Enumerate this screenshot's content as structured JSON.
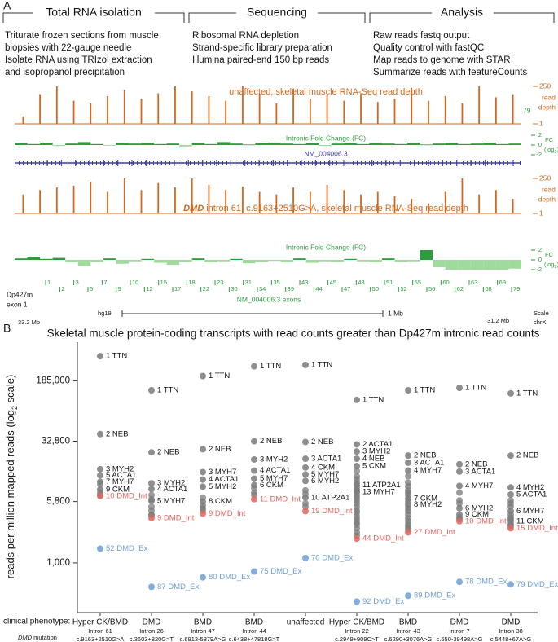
{
  "panel_a": {
    "label": "A",
    "sections": [
      {
        "title": "Total RNA isolation",
        "lines": [
          "Triturate frozen sections from muscle",
          "biopsies with 22-gauge needle",
          "Isolate RNA using TRIzol extraction",
          "and isopropanol precipitation"
        ]
      },
      {
        "title": "Sequencing",
        "lines": [
          "Ribosomal RNA depletion",
          "Strand-specific library preparation",
          "Illumina paired-end 150 bp reads"
        ]
      },
      {
        "title": "Analysis",
        "lines": [
          "Raw reads fastq output",
          "Quality control with fastQC",
          "Map reads to genome with STAR",
          "Summarize reads with featureCounts"
        ]
      }
    ],
    "depth_ylim": [
      1,
      250
    ],
    "depth_yticks": [
      250,
      1
    ],
    "depth_axis_label": [
      "read",
      "depth"
    ],
    "unaffected": {
      "title": "unaffected, skeletal muscle RNA-Seq read depth",
      "color": "#d2691e",
      "annotation": "79",
      "values": [
        3,
        80,
        250,
        30,
        20,
        60,
        150,
        40,
        90,
        250,
        120,
        60,
        30,
        250,
        80,
        20,
        180,
        40,
        70,
        30,
        90,
        25,
        40,
        200,
        30,
        60,
        20,
        250,
        50,
        79
      ]
    },
    "patient": {
      "title_italic": "DMD",
      "title": " intron 61, c.9163+2510G>A, skeletal muscle RNA-Seq read depth",
      "color": "#d2691e",
      "values": [
        20,
        40,
        60,
        80,
        150,
        30,
        250,
        40,
        120,
        60,
        250,
        90,
        40,
        70,
        30,
        20,
        60,
        30,
        90,
        40,
        20,
        30,
        15,
        10,
        5,
        30,
        250,
        20,
        40,
        10
      ]
    },
    "fc_title": "Intronic Fold Change (FC)",
    "fc_ylim": [
      -2,
      2
    ],
    "fc_yticks": [
      2,
      0,
      -2
    ],
    "fc_label": "FC",
    "fc_unit": [
      "(log",
      "2",
      ")"
    ],
    "fc_colors": {
      "positive": "#2e9b3e",
      "negative": "#9fdc9c"
    },
    "fc_unaffected": [
      0.4,
      0.2,
      0.5,
      -0.2,
      0.3,
      0.6,
      0.2,
      -0.1,
      0.4,
      0.3,
      0.5,
      0.2,
      0.3,
      -0.3,
      0.4,
      0.2,
      0.6,
      0.3,
      0.1,
      0.4,
      0.5,
      0.3,
      0.2,
      0.4,
      -0.2,
      0.3,
      0.5,
      0.2,
      0.4,
      0.3,
      0.2,
      0.5,
      0.1,
      0.3,
      0.4,
      0.2,
      0.3,
      0.5,
      0.2,
      0.3
    ],
    "fc_patient": [
      0.3,
      0.5,
      0.2,
      0.4,
      -0.5,
      -1.2,
      -0.4,
      0.3,
      -0.8,
      -0.3,
      0.2,
      -0.6,
      -1.0,
      -0.4,
      0.3,
      -0.5,
      -0.3,
      0.2,
      -0.7,
      -0.4,
      -0.2,
      -0.5,
      0.3,
      -0.6,
      -0.3,
      -0.4,
      0.2,
      -0.3,
      -0.5,
      0.3,
      -0.4,
      -0.3,
      2,
      -1.5,
      -2,
      -2,
      -2,
      -2,
      -2,
      -1.8
    ],
    "transcript": "NM_004006.3",
    "exons_title": "NM_004006.3 exons",
    "exons": [
      "1",
      "2",
      "3",
      "5",
      "7",
      "9",
      "10",
      "12",
      "15",
      "17",
      "18",
      "22",
      "23",
      "30",
      "31",
      "34",
      "35",
      "39",
      "43",
      "44",
      "45",
      "47",
      "48",
      "50",
      "51",
      "52",
      "55",
      "56",
      "60",
      "62",
      "63",
      "68",
      "69",
      "79"
    ],
    "isoform": [
      "Dp427m",
      "exon 1"
    ],
    "assembly": "hg19",
    "scale_bar": "1 Mb",
    "scale_label": "Scale",
    "chrom": "chrX",
    "coord_left": "33.2 Mb",
    "coord_right": "31.2 Mb"
  },
  "chart_data": {
    "type": "strip",
    "label": "B",
    "title": "Skeletal muscle protein-coding transcripts with read counts greater than Dp427m intronic read counts",
    "y_label": [
      "reads per million mapped reads (log",
      "2",
      " scale)"
    ],
    "log_scale": true,
    "ylim": [
      240,
      560000
    ],
    "yticks": [
      {
        "value": 1000,
        "label": "1,000"
      },
      {
        "value": 5800,
        "label": "5,800"
      },
      {
        "value": 32800,
        "label": "32,800"
      },
      {
        "value": 185000,
        "label": "185,000"
      }
    ],
    "colors": {
      "gene": "#7a7a7a",
      "intron": "#e0665e",
      "exon": "#6fa0d2"
    },
    "row_labels": {
      "phenotype": "clinical phenotype:",
      "mutation_italic": "DMD",
      "mutation": " mutation"
    },
    "categories": [
      "Hyper CK/BMD",
      "DMD",
      "BMD",
      "BMD",
      "unaffected",
      "Hyper CK/BMD",
      "BMD",
      "DMD",
      "DMD"
    ],
    "introns": [
      "Intron 61",
      "Intron 26",
      "Intron 47",
      "Intron 44",
      null,
      "Intron 22",
      "Intron 43",
      "Intron 7",
      "Intron 38"
    ],
    "mutations": [
      "c.9163+2510G>A",
      "c.3603+820G>T",
      "c.6913-5879A>G",
      "c.6438+47818G>T",
      null,
      "c.2949+909C>T",
      "c.6290+3076A>G",
      "c.650-39498A>G",
      "c.5448+67A>G"
    ],
    "columns": [
      {
        "points": [
          {
            "label": "1 TTN",
            "value": 375000,
            "kind": "gene"
          },
          {
            "label": "2 NEB",
            "value": 40200,
            "kind": "gene"
          },
          {
            "label": "3 MYH2",
            "value": 14700,
            "kind": "gene"
          },
          {
            "label": "5 ACTA1",
            "value": 12300,
            "kind": "gene"
          },
          {
            "label": "7 MYH7",
            "value": 10200,
            "kind": "gene"
          },
          {
            "label": "9 CKM",
            "value": 8200,
            "kind": "gene"
          },
          {
            "label": "10 DMD_Int",
            "value": 6800,
            "kind": "intron"
          },
          {
            "label": "52 DMD_Ex",
            "value": 1500,
            "kind": "exon"
          }
        ],
        "others": [
          9500,
          7500,
          7000
        ]
      },
      {
        "points": [
          {
            "label": "1 TTN",
            "value": 141000,
            "kind": "gene"
          },
          {
            "label": "2 NEB",
            "value": 23800,
            "kind": "gene"
          },
          {
            "label": "3 MYH2",
            "value": 9800,
            "kind": "gene"
          },
          {
            "label": "4 ACTA1",
            "value": 8300,
            "kind": "gene"
          },
          {
            "label": "5 MYH7",
            "value": 5900,
            "kind": "gene"
          },
          {
            "label": "9 DMD_Int",
            "value": 3600,
            "kind": "intron"
          },
          {
            "label": "87 DMD_Ex",
            "value": 504,
            "kind": "exon"
          }
        ],
        "others": [
          7000,
          6200,
          5000,
          4500,
          4000,
          3900
        ]
      },
      {
        "points": [
          {
            "label": "1 TTN",
            "value": 212000,
            "kind": "gene"
          },
          {
            "label": "2 NEB",
            "value": 26000,
            "kind": "gene"
          },
          {
            "label": "3 MYH7",
            "value": 13500,
            "kind": "gene"
          },
          {
            "label": "4 ACTA1",
            "value": 10900,
            "kind": "gene"
          },
          {
            "label": "5 MYH2",
            "value": 8900,
            "kind": "gene"
          },
          {
            "label": "8 CKM",
            "value": 5800,
            "kind": "gene"
          },
          {
            "label": "9 DMD_Int",
            "value": 4100,
            "kind": "intron"
          },
          {
            "label": "80 DMD_Ex",
            "value": 660,
            "kind": "exon"
          }
        ],
        "others": [
          6500,
          5200,
          4800,
          4500
        ]
      },
      {
        "points": [
          {
            "label": "1 TTN",
            "value": 280000,
            "kind": "gene"
          },
          {
            "label": "2 NEB",
            "value": 32700,
            "kind": "gene"
          },
          {
            "label": "3 MYH2",
            "value": 19400,
            "kind": "gene"
          },
          {
            "label": "4 ACTA1",
            "value": 14100,
            "kind": "gene"
          },
          {
            "label": "5 MYH7",
            "value": 11200,
            "kind": "gene"
          },
          {
            "label": "6 CKM",
            "value": 9300,
            "kind": "gene"
          },
          {
            "label": "11 DMD_Int",
            "value": 6200,
            "kind": "intron"
          },
          {
            "label": "75 DMD_Ex",
            "value": 780,
            "kind": "exon"
          }
        ],
        "others": [
          8500,
          7500,
          7000
        ]
      },
      {
        "points": [
          {
            "label": "1 TTN",
            "value": 292000,
            "kind": "gene"
          },
          {
            "label": "2 NEB",
            "value": 32000,
            "kind": "gene"
          },
          {
            "label": "3 ACTA1",
            "value": 19800,
            "kind": "gene"
          },
          {
            "label": "4 CKM",
            "value": 15400,
            "kind": "gene"
          },
          {
            "label": "5 MYH7",
            "value": 12600,
            "kind": "gene"
          },
          {
            "label": "6 MYH2",
            "value": 10500,
            "kind": "gene"
          },
          {
            "label": "10 ATP2A1",
            "value": 6500,
            "kind": "gene"
          },
          {
            "label": "19 DMD_Int",
            "value": 4400,
            "kind": "intron"
          },
          {
            "label": "70 DMD_Ex",
            "value": 1150,
            "kind": "exon"
          }
        ],
        "others": [
          8000,
          7200,
          5500,
          5000
        ]
      },
      {
        "points": [
          {
            "label": "1 TTN",
            "value": 107000,
            "kind": "gene"
          },
          {
            "label": "2 ACTA1",
            "value": 29900,
            "kind": "gene"
          },
          {
            "label": "3 MYH2",
            "value": 24400,
            "kind": "gene"
          },
          {
            "label": "4 NEB",
            "value": 19800,
            "kind": "gene"
          },
          {
            "label": "5 CKM",
            "value": 16100,
            "kind": "gene"
          },
          {
            "label": "11 ATP2A1",
            "value": 9300,
            "kind": "gene"
          },
          {
            "label": "13 MYH7",
            "value": 7600,
            "kind": "gene"
          },
          {
            "label": "44 DMD_Int",
            "value": 2000,
            "kind": "intron"
          },
          {
            "label": "92 DMD_Ex",
            "value": 330,
            "kind": "exon"
          }
        ],
        "others": [
          14000,
          12000,
          11000,
          10000,
          8500,
          8000,
          7000,
          6500,
          6000,
          5500,
          5000,
          4500,
          4200,
          3800,
          3500,
          3200,
          3000,
          2700,
          2400,
          2200
        ]
      },
      {
        "points": [
          {
            "label": "1 TTN",
            "value": 141000,
            "kind": "gene"
          },
          {
            "label": "2 NEB",
            "value": 21700,
            "kind": "gene"
          },
          {
            "label": "3 ACTA1",
            "value": 17700,
            "kind": "gene"
          },
          {
            "label": "4 MYH7",
            "value": 14100,
            "kind": "gene"
          },
          {
            "label": "7 CKM",
            "value": 6300,
            "kind": "gene"
          },
          {
            "label": "8 MYH2",
            "value": 5300,
            "kind": "gene"
          },
          {
            "label": "27 DMD_Int",
            "value": 2400,
            "kind": "intron"
          },
          {
            "label": "89 DMD_Ex",
            "value": 390,
            "kind": "exon"
          }
        ],
        "others": [
          12000,
          10000,
          9000,
          8000,
          7500,
          7000,
          5800,
          4800,
          4400,
          4000,
          3600,
          3300,
          3000,
          2800,
          2600
        ]
      },
      {
        "points": [
          {
            "label": "1 TTN",
            "value": 151000,
            "kind": "gene"
          },
          {
            "label": "2 NEB",
            "value": 16900,
            "kind": "gene"
          },
          {
            "label": "3 ACTA1",
            "value": 13700,
            "kind": "gene"
          },
          {
            "label": "4 MYH7",
            "value": 9100,
            "kind": "gene"
          },
          {
            "label": "6 MYH2",
            "value": 4800,
            "kind": "gene"
          },
          {
            "label": "9 CKM",
            "value": 4000,
            "kind": "gene"
          },
          {
            "label": "10 DMD_Int",
            "value": 3300,
            "kind": "intron"
          },
          {
            "label": "78 DMD_Ex",
            "value": 580,
            "kind": "exon"
          }
        ],
        "others": [
          7500,
          6000,
          5500,
          3700,
          3500
        ]
      },
      {
        "points": [
          {
            "label": "1 TTN",
            "value": 129000,
            "kind": "gene"
          },
          {
            "label": "2 NEB",
            "value": 21700,
            "kind": "gene"
          },
          {
            "label": "4 MYH2",
            "value": 8700,
            "kind": "gene"
          },
          {
            "label": "5 ACTA1",
            "value": 7100,
            "kind": "gene"
          },
          {
            "label": "6 MYH7",
            "value": 4400,
            "kind": "gene"
          },
          {
            "label": "11 CKM",
            "value": 3300,
            "kind": "gene"
          },
          {
            "label": "15 DMD_Int",
            "value": 2700,
            "kind": "intron"
          },
          {
            "label": "79 DMD_Ex",
            "value": 540,
            "kind": "exon"
          }
        ],
        "others": [
          6000,
          5500,
          5000,
          4000,
          3700,
          3500,
          3000,
          2900
        ]
      }
    ]
  }
}
